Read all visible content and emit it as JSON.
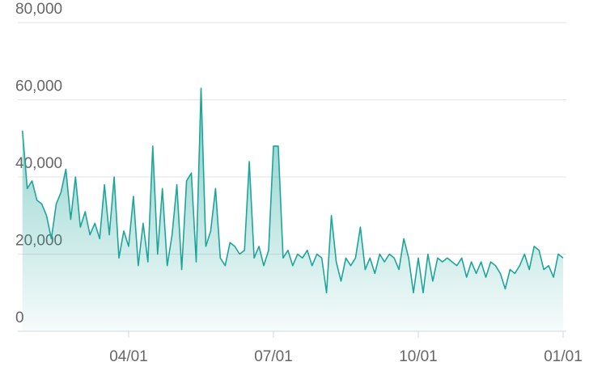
{
  "chart_data": {
    "type": "area",
    "series": [
      {
        "color": "#1ea59b",
        "values": [
          52000,
          37000,
          39000,
          34000,
          33000,
          30000,
          24000,
          33000,
          36000,
          42000,
          29000,
          40000,
          27000,
          31000,
          25000,
          28000,
          24000,
          38000,
          25000,
          40000,
          19000,
          26000,
          22000,
          35000,
          17000,
          28000,
          18000,
          48000,
          20000,
          37000,
          17000,
          25000,
          38000,
          16000,
          39000,
          41000,
          18000,
          63000,
          22000,
          26000,
          37000,
          19000,
          17000,
          23000,
          22000,
          20000,
          21000,
          44000,
          19000,
          22000,
          17000,
          21000,
          48000,
          48000,
          19000,
          21000,
          17000,
          20000,
          19000,
          21000,
          17000,
          20000,
          19000,
          10000,
          30000,
          18000,
          13000,
          19000,
          17000,
          19000,
          27000,
          16000,
          19000,
          15000,
          20000,
          18000,
          20000,
          19000,
          16000,
          24000,
          19000,
          10000,
          19000,
          10000,
          20000,
          13000,
          19000,
          18000,
          19000,
          18000,
          17000,
          19000,
          14000,
          18000,
          15000,
          18000,
          14000,
          18000,
          17000,
          15000,
          11000,
          16000,
          15000,
          17000,
          20000,
          16000,
          22000,
          21000,
          16000,
          17000,
          14000,
          20000,
          19000
        ]
      }
    ],
    "categories": [
      null,
      null,
      null,
      null,
      null,
      null,
      null,
      null,
      null,
      null,
      null,
      null,
      null,
      null,
      null,
      null,
      null,
      null,
      null,
      null,
      null,
      null,
      "04/01",
      null,
      null,
      null,
      null,
      null,
      null,
      null,
      null,
      null,
      null,
      null,
      null,
      null,
      null,
      null,
      null,
      null,
      null,
      null,
      null,
      null,
      null,
      null,
      null,
      null,
      null,
      null,
      null,
      null,
      "07/01",
      null,
      null,
      null,
      null,
      null,
      null,
      null,
      null,
      null,
      null,
      null,
      null,
      null,
      null,
      null,
      null,
      null,
      null,
      null,
      null,
      null,
      null,
      null,
      null,
      null,
      null,
      null,
      null,
      null,
      "10/01",
      null,
      null,
      null,
      null,
      null,
      null,
      null,
      null,
      null,
      null,
      null,
      null,
      null,
      null,
      null,
      null,
      null,
      null,
      null,
      null,
      null,
      null,
      null,
      null,
      null,
      null,
      null,
      null,
      null,
      "01/01"
    ],
    "ylim": [
      0,
      80000
    ],
    "yticks": [
      0,
      {
        "value": 20000,
        "label": "20,000"
      },
      {
        "value": 40000,
        "label": "40,000"
      },
      {
        "value": 60000,
        "label": "60,000"
      },
      {
        "value": 80000,
        "label": "80,000"
      }
    ],
    "grid": true
  }
}
